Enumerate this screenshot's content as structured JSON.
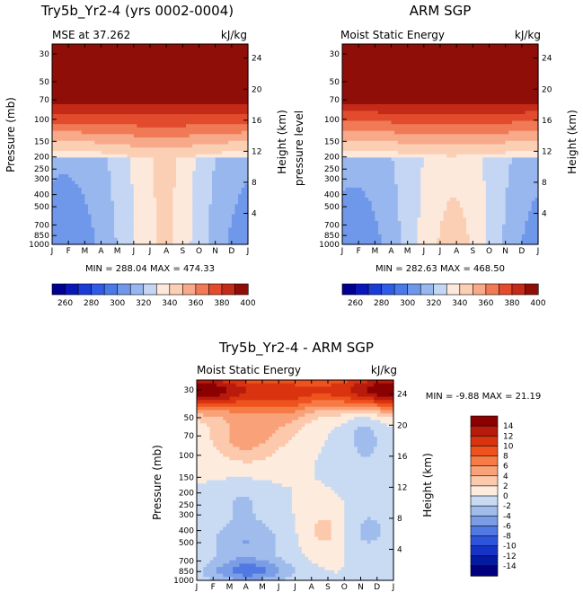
{
  "chart_data": [
    {
      "type": "contour",
      "title": "Try5b_Yr2-4 (yrs 0002-0004)",
      "subtitle_left": "MSE at 37.262",
      "subtitle_right": "kJ/kg",
      "ylabel": "Pressure (mb)",
      "ylabel_right": "Height (km)",
      "x_ticks": [
        "J",
        "F",
        "M",
        "A",
        "M",
        "J",
        "J",
        "A",
        "S",
        "O",
        "N",
        "D",
        "J"
      ],
      "y_ticks": [
        "30",
        "50",
        "70",
        "100",
        "150",
        "200",
        "250",
        "300",
        "400",
        "500",
        "700",
        "850",
        "1000"
      ],
      "height_ticks": [
        "24",
        "20",
        "16",
        "12",
        "8",
        "4"
      ],
      "min_max": "MIN = 288.04 MAX = 474.33",
      "levels": [
        260,
        270,
        280,
        290,
        300,
        310,
        320,
        330,
        340,
        350,
        360,
        370,
        380,
        390,
        400
      ],
      "cbar_labels": [
        "260",
        "280",
        "300",
        "320",
        "340",
        "360",
        "380",
        "400"
      ]
    },
    {
      "type": "contour",
      "title": "ARM SGP",
      "subtitle_left": "Moist Static Energy",
      "subtitle_right": "kJ/kg",
      "ylabel": "pressure level",
      "ylabel_right": "Height (km)",
      "x_ticks": [
        "J",
        "F",
        "M",
        "A",
        "M",
        "J",
        "J",
        "A",
        "S",
        "O",
        "N",
        "D",
        "J"
      ],
      "y_ticks": [
        "30",
        "50",
        "70",
        "100",
        "150",
        "200",
        "250",
        "300",
        "400",
        "500",
        "700",
        "850",
        "1000"
      ],
      "height_ticks": [
        "24",
        "20",
        "16",
        "12",
        "8",
        "4"
      ],
      "min_max": "MIN = 282.63 MAX = 468.50",
      "levels": [
        260,
        270,
        280,
        290,
        300,
        310,
        320,
        330,
        340,
        350,
        360,
        370,
        380,
        390,
        400
      ],
      "cbar_labels": [
        "260",
        "280",
        "300",
        "320",
        "340",
        "360",
        "380",
        "400"
      ]
    },
    {
      "type": "contour",
      "title": "Try5b_Yr2-4 - ARM SGP",
      "subtitle_left": "Moist Static Energy",
      "subtitle_right": "kJ/kg",
      "ylabel": "Pressure (mb)",
      "ylabel_right": "Height (km)",
      "x_ticks": [
        "J",
        "F",
        "M",
        "A",
        "M",
        "J",
        "J",
        "A",
        "S",
        "O",
        "N",
        "D",
        "J"
      ],
      "y_ticks": [
        "30",
        "50",
        "70",
        "100",
        "150",
        "200",
        "250",
        "300",
        "400",
        "500",
        "700",
        "850",
        "1000"
      ],
      "height_ticks": [
        "24",
        "20",
        "16",
        "12",
        "8",
        "4"
      ],
      "min_max": "MIN =  -9.88 MAX =  21.19",
      "levels": [
        -14,
        -12,
        -10,
        -8,
        -6,
        -4,
        -2,
        0,
        2,
        4,
        6,
        8,
        10,
        12,
        14
      ],
      "cbar_labels": [
        "14",
        "12",
        "10",
        "8",
        "6",
        "4",
        "2",
        "0",
        "-2",
        "-4",
        "-6",
        "-8",
        "-10",
        "-12",
        "-14"
      ]
    }
  ],
  "palette": {
    "blue_red": [
      "#000090",
      "#0a16b8",
      "#1b3bd6",
      "#2f5ce6",
      "#4a7ae8",
      "#6f98ea",
      "#98b7ee",
      "#c4d6f3",
      "#fde9dc",
      "#fbcfb4",
      "#f7a98a",
      "#f17a56",
      "#e24b2d",
      "#c42a18",
      "#900e08"
    ],
    "diff": [
      "#8b0000",
      "#b81a0c",
      "#d9330f",
      "#ee531e",
      "#f67b45",
      "#f9a27a",
      "#fcc9ad",
      "#fdebdd",
      "#c9daf3",
      "#9fbcec",
      "#7a9de6",
      "#5079e3",
      "#2d55db",
      "#1533c6",
      "#041aa0",
      "#000080"
    ]
  }
}
